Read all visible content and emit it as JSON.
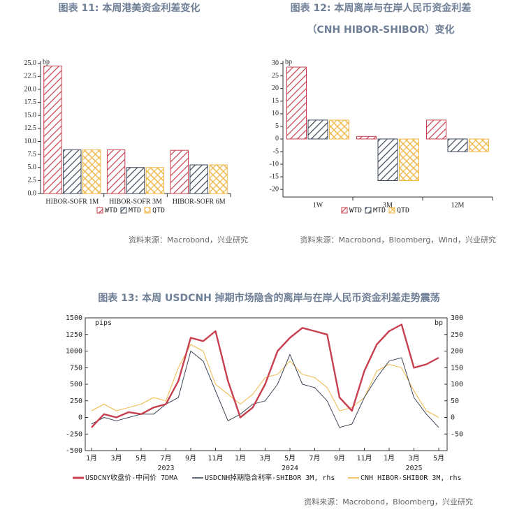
{
  "chart_data": [
    {
      "type": "bar",
      "title": "图表 11: 本周港美资金利差变化",
      "unit": "bp",
      "categories": [
        "HIBOR-SOFR 1M",
        "HIBOR-SOFR 3M",
        "HIBOR-SOFR 6M"
      ],
      "series": [
        {
          "name": "WTD",
          "color": "#c8404f",
          "hatch": "diagonal",
          "values": [
            24.5,
            8.4,
            8.3
          ]
        },
        {
          "name": "MTD",
          "color": "#3c4656",
          "hatch": "diagonal",
          "values": [
            8.4,
            5.0,
            5.5
          ]
        },
        {
          "name": "QTD",
          "color": "#f0b84a",
          "hatch": "cross",
          "values": [
            8.4,
            5.0,
            5.5
          ]
        }
      ],
      "ylim": [
        0,
        25.5
      ],
      "yticks": [
        {
          "value": 0,
          "label": "0.0"
        },
        2.5,
        {
          "value": 5,
          "label": "5.0"
        },
        7.5,
        {
          "value": 10,
          "label": "10.0"
        },
        12.5,
        {
          "value": 15,
          "label": "15.0"
        },
        17.5,
        {
          "value": 20,
          "label": "20.0"
        },
        22.5,
        {
          "value": 25,
          "label": "25.0"
        }
      ],
      "source": "资料来源：Macrobond，兴业研究"
    },
    {
      "type": "bar",
      "title": "图表 12: 本周离岸与在岸人民币资金利差",
      "subtitle": "（CNH HIBOR-SHIBOR）变化",
      "unit": "bp",
      "categories": [
        "1W",
        "3M",
        "12M"
      ],
      "series": [
        {
          "name": "WTD",
          "color": "#c8404f",
          "hatch": "diagonal",
          "values": [
            28.5,
            1.0,
            7.5
          ]
        },
        {
          "name": "MTD",
          "color": "#3c4656",
          "hatch": "diagonal",
          "values": [
            7.5,
            -16.5,
            -5.0
          ]
        },
        {
          "name": "QTD",
          "color": "#f0b84a",
          "hatch": "cross",
          "values": [
            7.5,
            -16.5,
            -5.0
          ]
        }
      ],
      "ylim": [
        -23,
        31
      ],
      "yticks": [
        -20,
        -15,
        -10,
        -5,
        0,
        5,
        10,
        15,
        20,
        25,
        30
      ],
      "source": "资料来源：Macrobond，Bloomberg，Wind，兴业研究"
    },
    {
      "type": "line",
      "title": "图表 13: 本周 USDCNH 掉期市场隐含的离岸与在岸人民币资金利差走势震荡",
      "ylabel": "pips",
      "y2label": "bp",
      "x": [
        "2023-01",
        "2023-02",
        "2023-03",
        "2023-04",
        "2023-05",
        "2023-06",
        "2023-07",
        "2023-08",
        "2023-09",
        "2023-10",
        "2023-11",
        "2023-12",
        "2024-01",
        "2024-02",
        "2024-03",
        "2024-04",
        "2024-05",
        "2024-06",
        "2024-07",
        "2024-08",
        "2024-09",
        "2024-10",
        "2024-11",
        "2024-12",
        "2025-01",
        "2025-02",
        "2025-03",
        "2025-04",
        "2025-05"
      ],
      "xlim": [
        "2023-01",
        "2025-05"
      ],
      "xticks": [
        {
          "value": "2023-01",
          "label": "1月"
        },
        {
          "value": "2023-03",
          "label": "3月"
        },
        {
          "value": "2023-05",
          "label": "5月"
        },
        {
          "value": "2023-07",
          "label": "7月"
        },
        {
          "value": "2023-09",
          "label": "9月"
        },
        {
          "value": "2023-11",
          "label": "11月"
        },
        {
          "value": "2024-01",
          "label": "1月"
        },
        {
          "value": "2024-03",
          "label": "3月"
        },
        {
          "value": "2024-05",
          "label": "5月"
        },
        {
          "value": "2024-07",
          "label": "7月"
        },
        {
          "value": "2024-09",
          "label": "9月"
        },
        {
          "value": "2024-11",
          "label": "11月"
        },
        {
          "value": "2025-01",
          "label": "1月"
        },
        {
          "value": "2025-03",
          "label": "3月"
        },
        {
          "value": "2025-05",
          "label": "5月"
        }
      ],
      "year_labels": [
        {
          "value": "2023-07",
          "label": "2023"
        },
        {
          "value": "2024-05",
          "label": "2024"
        },
        {
          "value": "2025-03",
          "label": "2025"
        }
      ],
      "ylim": [
        -500,
        1500
      ],
      "yticks": [
        -500,
        -250,
        0,
        250,
        500,
        750,
        1000,
        1250,
        1500
      ],
      "y2lim": [
        -100,
        300
      ],
      "y2ticks": [
        -50,
        0,
        50,
        100,
        150,
        200,
        250,
        300
      ],
      "series": [
        {
          "name": "USDCNY收盘价-中间价 7DMA",
          "color": "#c8404f",
          "width": 2.4,
          "values": [
            -150,
            50,
            0,
            80,
            50,
            150,
            200,
            550,
            1200,
            1150,
            1300,
            550,
            0,
            150,
            500,
            1000,
            1200,
            1350,
            1300,
            1250,
            300,
            100,
            700,
            1100,
            1300,
            1400,
            750,
            800,
            900
          ]
        },
        {
          "name": "USDCNH掉期隐含利率-SHIBOR 3M, rhs",
          "color": "#3c4656",
          "width": 1,
          "axis": "y2",
          "values": [
            -20,
            0,
            -10,
            0,
            10,
            10,
            40,
            60,
            200,
            170,
            80,
            -10,
            10,
            40,
            50,
            100,
            190,
            100,
            90,
            50,
            -30,
            -20,
            60,
            120,
            170,
            180,
            60,
            10,
            -30
          ]
        },
        {
          "name": "CNH HIBOR-SHIBOR 3M, rhs",
          "color": "#f0b84a",
          "width": 1,
          "axis": "y2",
          "values": [
            20,
            40,
            20,
            30,
            40,
            60,
            50,
            150,
            220,
            200,
            100,
            70,
            40,
            70,
            120,
            130,
            170,
            130,
            120,
            90,
            20,
            30,
            60,
            140,
            160,
            150,
            80,
            20,
            0
          ]
        }
      ],
      "source": "资料来源：Macrobond，Bloomberg，兴业研究"
    }
  ]
}
